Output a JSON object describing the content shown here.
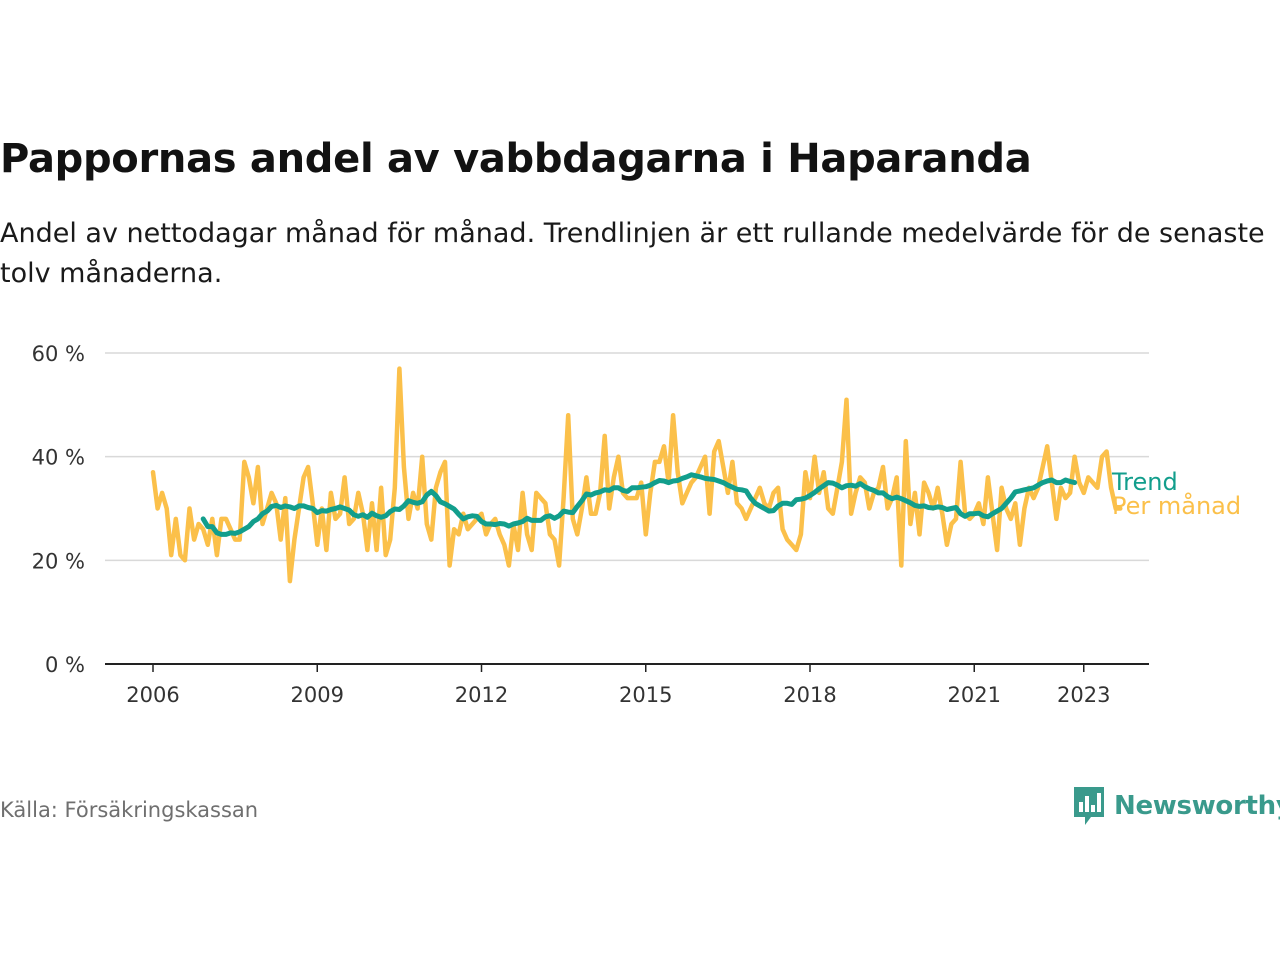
{
  "header": {
    "title": "Pappornas andel av vabbdagarna i Haparanda",
    "subtitle": "Andel av nettodagar månad för månad. Trendlinjen är ett rullande medelvärde för de senaste tolv månaderna."
  },
  "footer": {
    "source": "Källa: Försäkringskassan",
    "brand": "Newsworthy"
  },
  "colors": {
    "monthly": "#FBC04A",
    "trend": "#129E8C",
    "grid": "#d9d9d9",
    "axis": "#222222",
    "brand": "#3a9a8c"
  },
  "icons": {
    "logo": "newsworthy-logo-icon"
  },
  "chart_data": {
    "type": "line",
    "title": "Pappornas andel av vabbdagarna i Haparanda",
    "x_range": [
      "2006-01",
      "2023-12"
    ],
    "ylim": [
      0,
      60
    ],
    "y_ticks": [
      0,
      20,
      40,
      60
    ],
    "y_tick_labels": [
      "0 %",
      "20 %",
      "40 %",
      "60 %"
    ],
    "x_ticks": [
      2006,
      2009,
      2012,
      2015,
      2018,
      2021,
      2023
    ],
    "x_tick_labels": [
      "2006",
      "2009",
      "2012",
      "2015",
      "2018",
      "2021",
      "2023"
    ],
    "grid": "horizontal",
    "legend": "direct labels at right end of lines",
    "series": [
      {
        "name": "Per månad",
        "start": "2006-01",
        "frequency": "monthly",
        "values": [
          37,
          30,
          33,
          30,
          21,
          28,
          21,
          20,
          30,
          24,
          27,
          26,
          23,
          28,
          21,
          28,
          28,
          26,
          24,
          24,
          39,
          36,
          31,
          38,
          27,
          30,
          33,
          31,
          24,
          32,
          16,
          24,
          30,
          36,
          38,
          31,
          23,
          30,
          22,
          33,
          28,
          29,
          36,
          27,
          28,
          33,
          29,
          22,
          31,
          22,
          34,
          21,
          24,
          34,
          57,
          38,
          28,
          33,
          30,
          40,
          27,
          24,
          34,
          37,
          39,
          19,
          26,
          25,
          29,
          26,
          27,
          28,
          29,
          25,
          27,
          28,
          25,
          23,
          19,
          27,
          22,
          33,
          25,
          22,
          33,
          32,
          31,
          25,
          24,
          19,
          32,
          48,
          28,
          25,
          30,
          36,
          29,
          29,
          33,
          44,
          30,
          36,
          40,
          33,
          32,
          32,
          32,
          35,
          25,
          33,
          39,
          39,
          42,
          35,
          48,
          37,
          31,
          33,
          35,
          36,
          38,
          40,
          29,
          41,
          43,
          38,
          33,
          39,
          31,
          30,
          28,
          30,
          32,
          34,
          31,
          30,
          33,
          34,
          26,
          24,
          23,
          22,
          25,
          37,
          32,
          40,
          33,
          37,
          30,
          29,
          34,
          39,
          51,
          29,
          33,
          36,
          35,
          30,
          33,
          34,
          38,
          30,
          32,
          36,
          19,
          43,
          27,
          33,
          25,
          35,
          33,
          30,
          34,
          29,
          23,
          27,
          28,
          39,
          29,
          28,
          29,
          31,
          27,
          36,
          29,
          22,
          34,
          30,
          28,
          31,
          23,
          30,
          34,
          32,
          34,
          38,
          42,
          35,
          28,
          34,
          32,
          33,
          40,
          35,
          33,
          36,
          35,
          34,
          40,
          41,
          34,
          30,
          30
        ]
      },
      {
        "name": "Trend",
        "start": "2006-12",
        "frequency": "monthly",
        "values": [
          28.0,
          26.5,
          26.5,
          25.3,
          25.0,
          25.0,
          25.3,
          25.2,
          25.5,
          26.0,
          26.5,
          27.5,
          28.0,
          29.0,
          29.5,
          30.4,
          30.6,
          30.2,
          30.5,
          30.3,
          30.0,
          30.5,
          30.5,
          30.2,
          30.0,
          29.2,
          29.6,
          29.5,
          29.8,
          30.0,
          30.3,
          30.0,
          29.7,
          28.8,
          28.5,
          28.8,
          28.3,
          29.1,
          28.6,
          28.3,
          28.6,
          29.4,
          29.9,
          29.8,
          30.5,
          31.5,
          31.2,
          31.0,
          31.3,
          32.6,
          33.3,
          32.5,
          31.3,
          30.9,
          30.4,
          29.9,
          28.9,
          28.0,
          28.4,
          28.6,
          28.5,
          27.5,
          27.0,
          27.0,
          26.9,
          27.1,
          27.0,
          26.6,
          27.0,
          27.2,
          27.5,
          28.1,
          27.7,
          27.7,
          27.7,
          28.4,
          28.6,
          28.1,
          28.6,
          29.5,
          29.3,
          29.2,
          30.4,
          31.5,
          32.8,
          32.6,
          33.0,
          33.2,
          33.6,
          33.5,
          34.0,
          34.0,
          33.5,
          33.3,
          34.0,
          34.0,
          34.1,
          34.2,
          34.5,
          35.0,
          35.4,
          35.3,
          35.0,
          35.3,
          35.4,
          35.8,
          36.1,
          36.5,
          36.3,
          36.1,
          35.8,
          35.7,
          35.6,
          35.3,
          35.0,
          34.5,
          34.1,
          33.7,
          33.6,
          33.4,
          32.0,
          31.0,
          30.5,
          30.0,
          29.5,
          29.6,
          30.5,
          31.0,
          31.0,
          30.8,
          31.7,
          31.8,
          32.0,
          32.5,
          33.1,
          33.8,
          34.4,
          35.0,
          34.9,
          34.5,
          34.0,
          34.4,
          34.5,
          34.3,
          34.8,
          34.2,
          33.8,
          33.5,
          33.0,
          33.0,
          32.3,
          31.9,
          32.2,
          31.9,
          31.5,
          31.1,
          30.6,
          30.4,
          30.5,
          30.2,
          30.1,
          30.3,
          30.2,
          29.8,
          30.0,
          30.2,
          29.0,
          28.5,
          29.0,
          29.0,
          29.1,
          28.6,
          28.4,
          29.0,
          29.5,
          30.0,
          31.0,
          32.0,
          33.2,
          33.4,
          33.6,
          33.8,
          34.0,
          34.5,
          35.0,
          35.3,
          35.5,
          35.0,
          35.0,
          35.5,
          35.2,
          35.0
        ]
      }
    ]
  }
}
